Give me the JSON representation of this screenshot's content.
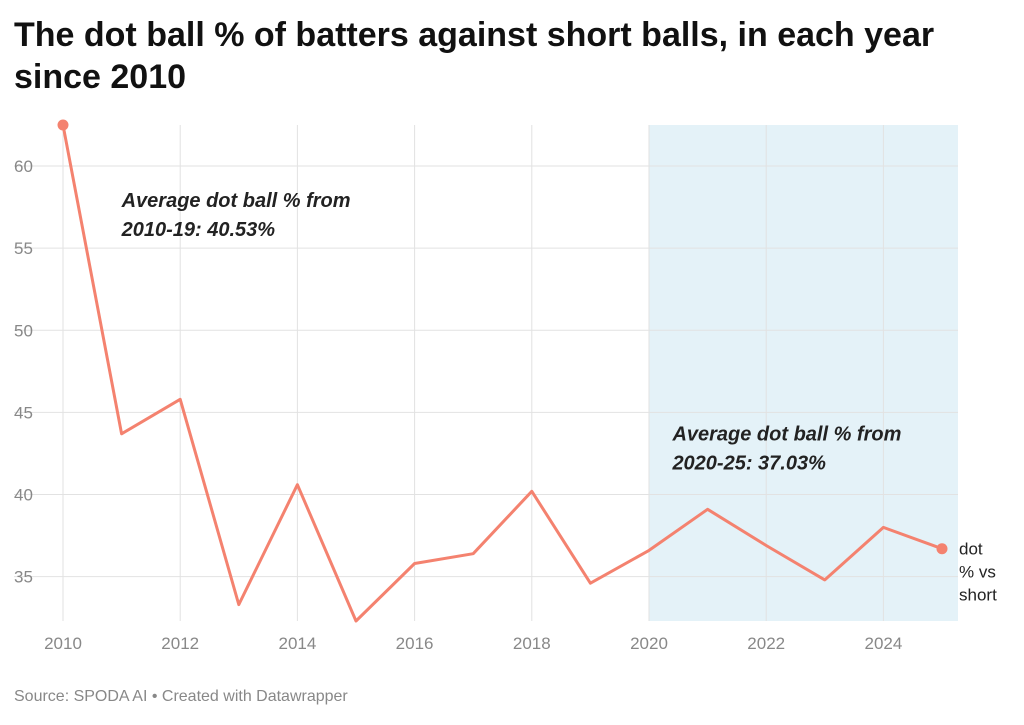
{
  "title": "The dot ball % of batters against short balls, in each year since 2010",
  "source": "Source: SPODA AI • Created with Datawrapper",
  "colors": {
    "line": "#F4826F",
    "highlight": "#E4F2F8",
    "grid": "#E2E2E2",
    "tick": "#888888"
  },
  "chart_data": {
    "type": "line",
    "x": [
      2010,
      2011,
      2012,
      2013,
      2014,
      2015,
      2016,
      2017,
      2018,
      2019,
      2020,
      2021,
      2022,
      2023,
      2024,
      2025
    ],
    "series": [
      {
        "name": "dot % vs short",
        "values": [
          62.5,
          43.7,
          45.8,
          33.3,
          40.6,
          32.3,
          35.8,
          36.4,
          40.2,
          34.6,
          36.6,
          39.1,
          36.9,
          34.8,
          38.0,
          36.7
        ]
      }
    ],
    "xlim": [
      2010,
      2025
    ],
    "ylim": [
      32.3,
      62.5
    ],
    "xticks": [
      2010,
      2012,
      2014,
      2016,
      2018,
      2020,
      2022,
      2024
    ],
    "yticks": [
      35,
      40,
      45,
      50,
      55,
      60
    ],
    "grid": true,
    "series_label_lines": [
      "dot",
      "% vs",
      "short"
    ],
    "highlight_range": {
      "from": 2020,
      "to": 2025.3
    },
    "annotations": [
      {
        "lines": [
          "Average dot ball % from",
          "2010-19: 40.53%"
        ],
        "x": 2011,
        "y": 57.5
      },
      {
        "lines": [
          "Average dot ball % from",
          "2020-25: 37.03%"
        ],
        "x": 2020.4,
        "y": 43.3
      }
    ]
  }
}
